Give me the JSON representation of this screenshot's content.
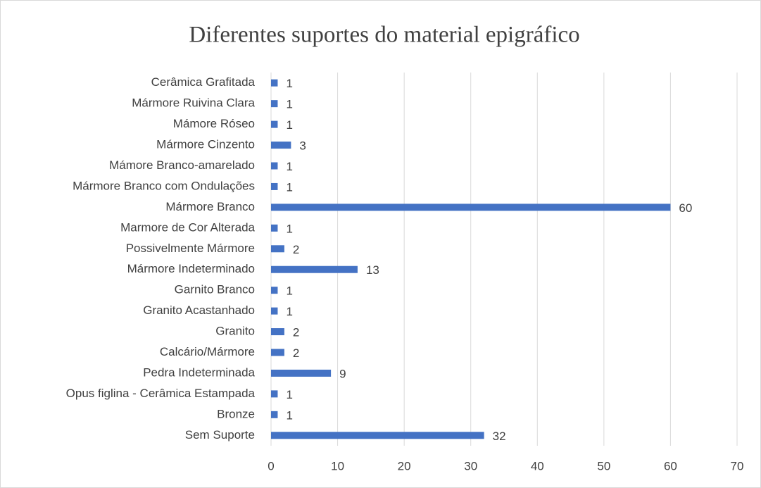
{
  "chart_data": {
    "type": "barh",
    "title": "Diferentes suportes do material epigráfico",
    "categories": [
      "Cerâmica Grafitada",
      "Mármore Ruivina Clara",
      "Mámore Róseo",
      "Mármore Cinzento",
      "Mámore Branco-amarelado",
      "Mármore Branco com Ondulações",
      "Mármore Branco",
      "Marmore de Cor Alterada",
      "Possivelmente Mármore",
      "Mármore Indeterminado",
      "Garnito Branco",
      "Granito Acastanhado",
      "Granito",
      "Calcário/Mármore",
      "Pedra Indeterminada",
      "Opus figlina - Cerâmica Estampada",
      "Bronze",
      "Sem Suporte"
    ],
    "values": [
      1,
      1,
      1,
      3,
      1,
      1,
      60,
      1,
      2,
      13,
      1,
      1,
      2,
      2,
      9,
      1,
      1,
      32
    ],
    "color": "#4472c4",
    "xlim": [
      0,
      70
    ],
    "xticks": [
      0,
      10,
      20,
      30,
      40,
      50,
      60,
      70
    ],
    "grid": true
  }
}
